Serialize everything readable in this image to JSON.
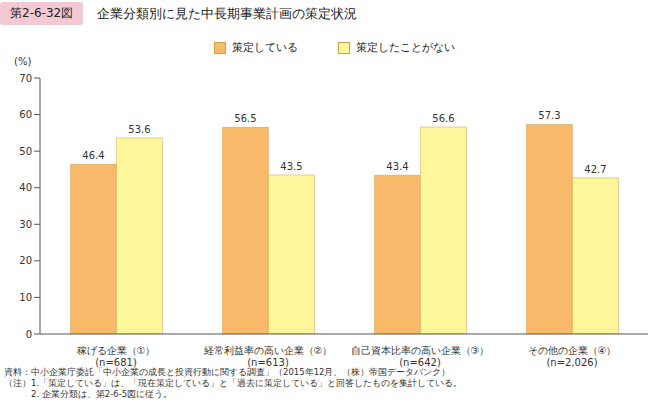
{
  "chart_data": {
    "type": "bar",
    "figure_label": "第2-6-32図",
    "title": "企業分類別に見た中長期事業計画の策定状況",
    "y_label": "(%)",
    "categories": [
      "稼げる企業（①）\n(n=681)",
      "経常利益率の高い企業（②）\n(n=613)",
      "自己資本比率の高い企業（③）\n(n=642)",
      "その他の企業（④）\n(n=2,026)"
    ],
    "series": [
      {
        "name": "策定している",
        "color": "#f8b96b",
        "values": [
          46.4,
          56.5,
          43.4,
          57.3
        ]
      },
      {
        "name": "策定したことがない",
        "color": "#fff59a",
        "values": [
          53.6,
          43.5,
          56.6,
          42.7
        ]
      }
    ],
    "ylim": [
      0,
      70
    ],
    "yticks": [
      0,
      10,
      20,
      30,
      40,
      50,
      60,
      70
    ],
    "grid": false,
    "data_labels": true,
    "legend": "top",
    "notes": [
      "資料：中小企業庁委託「中小企業の成長と投資行動に関する調査」（2015年12月、（株）帝国データバンク）",
      "（注）1.「策定している」は、「現在策定している」と「過去に策定している」と回答したものを集計している。",
      "　　　2. 企業分類は、第2-6-5図に従う。"
    ]
  }
}
